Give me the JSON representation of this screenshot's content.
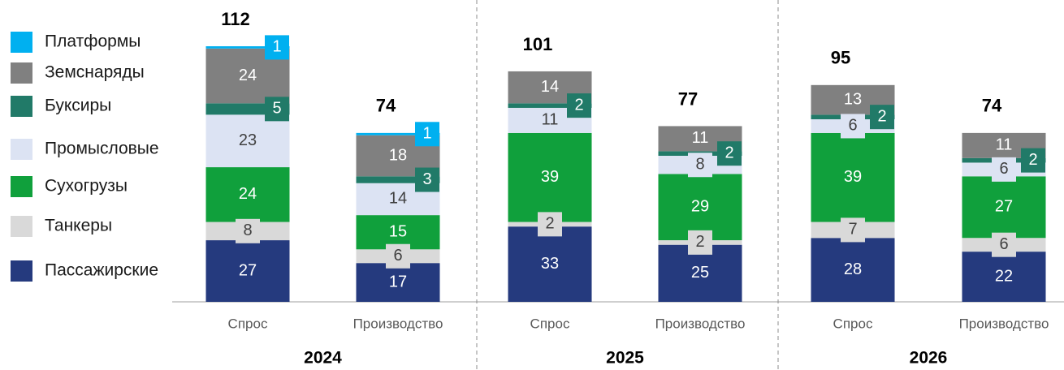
{
  "chart_data": {
    "type": "stacked_bar",
    "categories": [
      "Спрос",
      "Производство",
      "Спрос",
      "Производство",
      "Спрос",
      "Производство"
    ],
    "groups": [
      "2024",
      "2025",
      "2026"
    ],
    "totals": [
      112,
      74,
      101,
      77,
      95,
      74
    ],
    "series": [
      {
        "name": "Пассажирские",
        "color": "#253a7e",
        "label_color": "#ffffff",
        "values": [
          27,
          17,
          33,
          25,
          28,
          22
        ]
      },
      {
        "name": "Танкеры",
        "color": "#d9d9d9",
        "label_color": "#404040",
        "values": [
          8,
          6,
          2,
          2,
          7,
          6
        ]
      },
      {
        "name": "Сухогрузы",
        "color": "#10a03c",
        "label_color": "#ffffff",
        "values": [
          24,
          15,
          39,
          29,
          39,
          27
        ]
      },
      {
        "name": "Промысловые",
        "color": "#dce3f3",
        "label_color": "#404040",
        "values": [
          23,
          14,
          11,
          8,
          6,
          6
        ]
      },
      {
        "name": "Буксиры",
        "color": "#217a68",
        "label_color": "#ffffff",
        "values": [
          5,
          3,
          2,
          2,
          2,
          2
        ]
      },
      {
        "name": "Земснаряды",
        "color": "#808080",
        "label_color": "#ffffff",
        "values": [
          24,
          18,
          14,
          11,
          13,
          11
        ]
      },
      {
        "name": "Платформы",
        "color": "#00b0f0",
        "label_color": "#ffffff",
        "values": [
          1,
          1,
          null,
          null,
          null,
          null
        ]
      }
    ]
  }
}
